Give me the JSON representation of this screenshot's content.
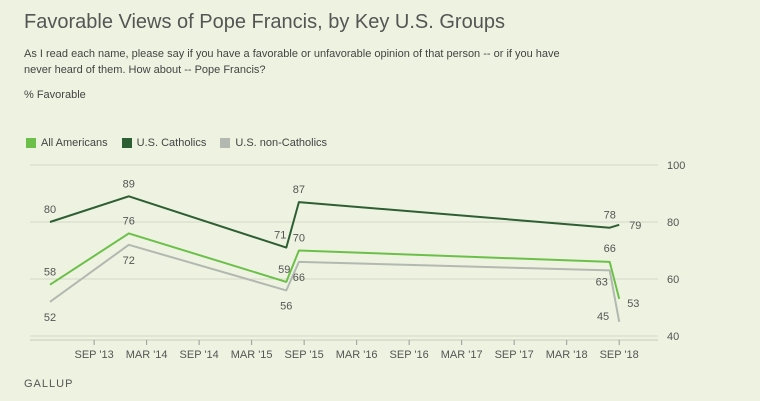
{
  "header": {
    "title": "Favorable Views of Pope Francis, by Key U.S. Groups",
    "subtitle": "As I read each name, please say if you have a favorable or unfavorable opinion of that person -- or if you have never heard of them. How about -- Pope Francis?",
    "unit_label": "% Favorable"
  },
  "footer": {
    "source": "GALLUP"
  },
  "chart_data": {
    "type": "line",
    "title": "Favorable Views of Pope Francis, by Key U.S. Groups",
    "ylabel": "% Favorable",
    "ylim": [
      40,
      100
    ],
    "yticks": [
      40,
      60,
      80,
      100
    ],
    "xlim": [
      2013.25,
      2018.83
    ],
    "xticks": [
      {
        "label": "SEP '13",
        "x": 2013.67
      },
      {
        "label": "MAR '14",
        "x": 2014.17
      },
      {
        "label": "SEP '14",
        "x": 2014.67
      },
      {
        "label": "MAR '15",
        "x": 2015.17
      },
      {
        "label": "SEP '15",
        "x": 2015.67
      },
      {
        "label": "MAR '16",
        "x": 2016.17
      },
      {
        "label": "SEP '16",
        "x": 2016.67
      },
      {
        "label": "MAR '17",
        "x": 2017.17
      },
      {
        "label": "SEP '17",
        "x": 2017.67
      },
      {
        "label": "MAR '18",
        "x": 2018.17
      },
      {
        "label": "SEP '18",
        "x": 2018.67
      }
    ],
    "grid": true,
    "legend_position": "top-left",
    "series": [
      {
        "name": "All Americans",
        "color": "#6cc04a",
        "points": [
          {
            "x": 2013.25,
            "y": 58
          },
          {
            "x": 2014.0,
            "y": 76
          },
          {
            "x": 2015.5,
            "y": 59
          },
          {
            "x": 2015.62,
            "y": 70
          },
          {
            "x": 2018.58,
            "y": 66
          },
          {
            "x": 2018.67,
            "y": 53
          }
        ]
      },
      {
        "name": "U.S. Catholics",
        "color": "#2e5e33",
        "points": [
          {
            "x": 2013.25,
            "y": 80
          },
          {
            "x": 2014.0,
            "y": 89
          },
          {
            "x": 2015.5,
            "y": 71
          },
          {
            "x": 2015.62,
            "y": 87
          },
          {
            "x": 2018.58,
            "y": 78
          },
          {
            "x": 2018.67,
            "y": 79
          }
        ]
      },
      {
        "name": "U.S. non-Catholics",
        "color": "#b3b8b1",
        "points": [
          {
            "x": 2013.25,
            "y": 52
          },
          {
            "x": 2014.0,
            "y": 72
          },
          {
            "x": 2015.5,
            "y": 56
          },
          {
            "x": 2015.62,
            "y": 66
          },
          {
            "x": 2018.58,
            "y": 63
          },
          {
            "x": 2018.67,
            "y": 45
          }
        ]
      }
    ]
  }
}
